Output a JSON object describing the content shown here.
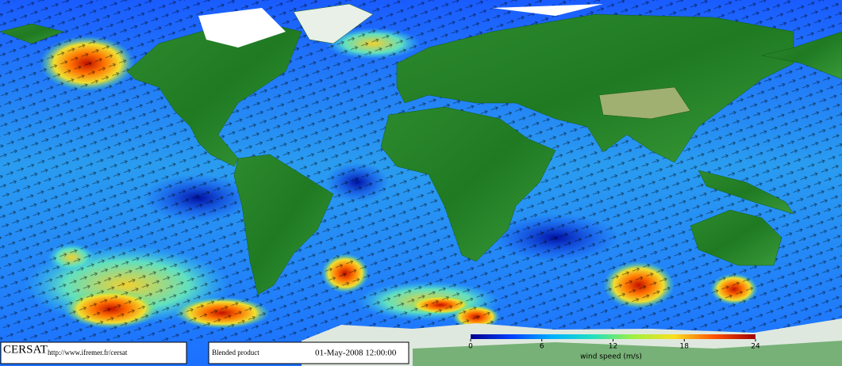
{
  "footer": {
    "brand": "CERSAT",
    "url": "http://www.ifremer.fr/cersat",
    "product": "Blended product",
    "timestamp": "01-May-2008 12:00:00"
  },
  "colorbar": {
    "label": "wind speed (m/s)",
    "lim": [
      0,
      24
    ],
    "ticks": [
      0,
      6,
      12,
      18,
      24
    ],
    "colors": [
      "#00008b",
      "#0040ff",
      "#00b0ff",
      "#20e0c0",
      "#a0f040",
      "#f8e020",
      "#ff5000",
      "#a00000"
    ]
  }
}
